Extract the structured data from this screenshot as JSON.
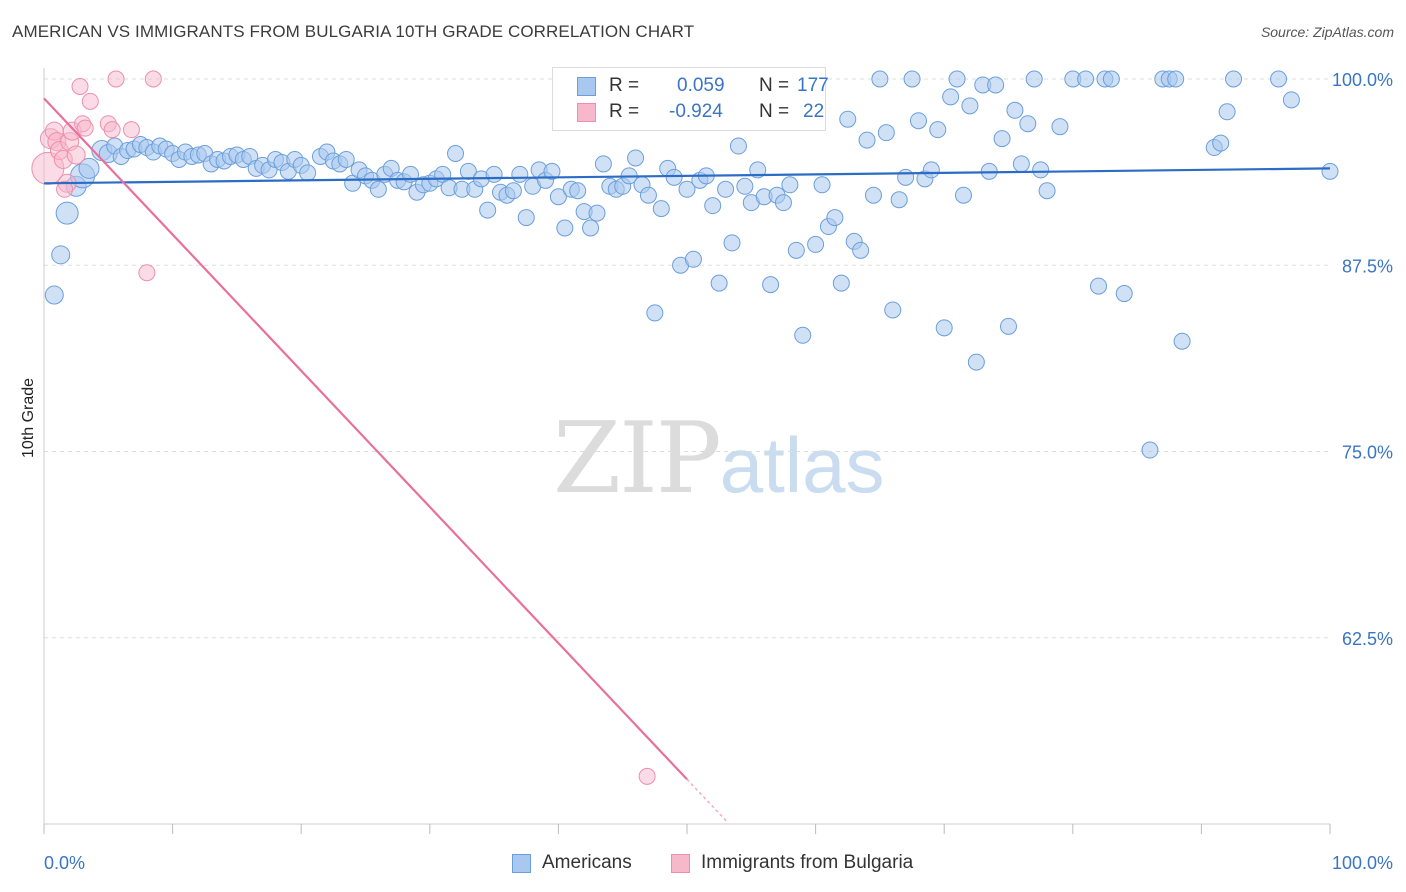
{
  "title": "AMERICAN VS IMMIGRANTS FROM BULGARIA 10TH GRADE CORRELATION CHART",
  "source": "Source: ZipAtlas.com",
  "watermark": {
    "part1": "ZIP",
    "part2": "atlas"
  },
  "legend_top": [
    {
      "r_label": "R =",
      "r_value": "0.059",
      "n_label": "N =",
      "n_value": "177"
    },
    {
      "r_label": "R =",
      "r_value": "-0.924",
      "n_label": "N =",
      "n_value": "22"
    }
  ],
  "colors": {
    "americans_fill": "#a9c8ef",
    "americans_stroke": "#6b9fdc",
    "americans_line": "#2b6cc4",
    "bulgaria_fill": "#f7b8cb",
    "bulgaria_stroke": "#ee8fae",
    "bulgaria_line": "#e8709a",
    "tick_text": "#3a75c4",
    "grid": "#dddddd"
  },
  "chart_data": {
    "type": "scatter",
    "title": "AMERICAN VS IMMIGRANTS FROM BULGARIA 10TH GRADE CORRELATION CHART",
    "xlabel": "",
    "ylabel": "10th Grade",
    "xlim": [
      0,
      100
    ],
    "ylim": [
      50,
      100
    ],
    "x_ticks": [
      0,
      100
    ],
    "x_tick_labels": [
      "0.0%",
      "100.0%"
    ],
    "y_ticks": [
      62.5,
      75.0,
      87.5,
      100.0
    ],
    "y_tick_labels": [
      "62.5%",
      "75.0%",
      "87.5%",
      "100.0%"
    ],
    "grid": true,
    "legend_position": "top-center and bottom",
    "series": [
      {
        "name": "Americans",
        "trend": {
          "x": [
            0,
            100
          ],
          "y": [
            93.0,
            94.0
          ]
        },
        "points": [
          [
            0.8,
            85.5,
            9
          ],
          [
            1.3,
            88.2,
            9
          ],
          [
            1.8,
            91.0,
            11
          ],
          [
            2.5,
            92.8,
            10
          ],
          [
            3.0,
            93.5,
            12
          ],
          [
            3.5,
            94.0,
            10
          ],
          [
            4.5,
            95.2,
            10
          ],
          [
            5.0,
            95.0,
            9
          ],
          [
            5.5,
            95.5,
            8
          ],
          [
            6.0,
            94.8,
            8
          ],
          [
            6.5,
            95.2,
            8
          ],
          [
            7.0,
            95.3,
            8
          ],
          [
            7.5,
            95.6,
            8
          ],
          [
            8.0,
            95.4,
            8
          ],
          [
            8.5,
            95.1,
            8
          ],
          [
            9.0,
            95.5,
            8
          ],
          [
            9.5,
            95.3,
            8
          ],
          [
            10.0,
            95.0,
            8
          ],
          [
            10.5,
            94.6,
            8
          ],
          [
            11.0,
            95.1,
            8
          ],
          [
            11.5,
            94.8,
            8
          ],
          [
            12.0,
            94.9,
            8
          ],
          [
            12.5,
            95.0,
            8
          ],
          [
            13.0,
            94.3,
            8
          ],
          [
            13.5,
            94.6,
            8
          ],
          [
            14.0,
            94.5,
            8
          ],
          [
            14.5,
            94.8,
            8
          ],
          [
            15.0,
            94.9,
            8
          ],
          [
            15.5,
            94.6,
            8
          ],
          [
            16.0,
            94.8,
            8
          ],
          [
            16.5,
            94.0,
            8
          ],
          [
            17.0,
            94.2,
            8
          ],
          [
            17.5,
            93.9,
            8
          ],
          [
            18.0,
            94.6,
            8
          ],
          [
            18.5,
            94.4,
            8
          ],
          [
            19.0,
            93.8,
            8
          ],
          [
            19.5,
            94.6,
            8
          ],
          [
            20.0,
            94.2,
            8
          ],
          [
            20.5,
            93.7,
            8
          ],
          [
            21.5,
            94.8,
            8
          ],
          [
            22.0,
            95.1,
            8
          ],
          [
            22.5,
            94.5,
            8
          ],
          [
            23.0,
            94.3,
            8
          ],
          [
            23.5,
            94.6,
            8
          ],
          [
            24.0,
            93.0,
            8
          ],
          [
            24.5,
            93.9,
            8
          ],
          [
            25.0,
            93.5,
            8
          ],
          [
            25.5,
            93.2,
            8
          ],
          [
            26.0,
            92.6,
            8
          ],
          [
            26.5,
            93.6,
            8
          ],
          [
            27.0,
            94.0,
            8
          ],
          [
            27.5,
            93.2,
            8
          ],
          [
            28.0,
            93.1,
            8
          ],
          [
            28.5,
            93.6,
            8
          ],
          [
            29.0,
            92.4,
            8
          ],
          [
            29.5,
            92.9,
            8
          ],
          [
            30.0,
            93.0,
            8
          ],
          [
            30.5,
            93.3,
            8
          ],
          [
            31.0,
            93.6,
            8
          ],
          [
            31.5,
            92.7,
            8
          ],
          [
            32.0,
            95.0,
            8
          ],
          [
            32.5,
            92.6,
            8
          ],
          [
            33.0,
            93.8,
            8
          ],
          [
            33.5,
            92.6,
            8
          ],
          [
            34.0,
            93.3,
            8
          ],
          [
            34.5,
            91.2,
            8
          ],
          [
            35.0,
            93.6,
            8
          ],
          [
            35.5,
            92.4,
            8
          ],
          [
            36.0,
            92.2,
            8
          ],
          [
            36.5,
            92.5,
            8
          ],
          [
            37.0,
            93.6,
            8
          ],
          [
            37.5,
            90.7,
            8
          ],
          [
            38.0,
            92.8,
            8
          ],
          [
            38.5,
            93.9,
            8
          ],
          [
            39.0,
            93.2,
            8
          ],
          [
            39.5,
            93.8,
            8
          ],
          [
            40.0,
            92.1,
            8
          ],
          [
            40.5,
            90.0,
            8
          ],
          [
            41.0,
            92.6,
            8
          ],
          [
            41.5,
            92.5,
            8
          ],
          [
            42.0,
            91.1,
            8
          ],
          [
            42.5,
            90.0,
            8
          ],
          [
            43.0,
            91.0,
            8
          ],
          [
            43.5,
            94.3,
            8
          ],
          [
            44.0,
            92.8,
            8
          ],
          [
            44.5,
            92.6,
            8
          ],
          [
            45.0,
            92.8,
            8
          ],
          [
            45.5,
            93.5,
            8
          ],
          [
            46.0,
            94.7,
            8
          ],
          [
            46.5,
            92.9,
            8
          ],
          [
            47.0,
            92.2,
            8
          ],
          [
            47.5,
            84.3,
            8
          ],
          [
            48.0,
            91.3,
            8
          ],
          [
            48.5,
            94.0,
            8
          ],
          [
            49.0,
            93.4,
            8
          ],
          [
            49.5,
            87.5,
            8
          ],
          [
            50.0,
            92.6,
            8
          ],
          [
            50.5,
            87.9,
            8
          ],
          [
            51.0,
            93.2,
            8
          ],
          [
            51.5,
            93.5,
            8
          ],
          [
            52.0,
            91.5,
            8
          ],
          [
            52.5,
            86.3,
            8
          ],
          [
            53.0,
            92.6,
            8
          ],
          [
            53.5,
            89.0,
            8
          ],
          [
            54.0,
            95.5,
            8
          ],
          [
            54.5,
            92.8,
            8
          ],
          [
            55.0,
            91.7,
            8
          ],
          [
            55.5,
            93.9,
            8
          ],
          [
            56.0,
            92.1,
            8
          ],
          [
            56.5,
            86.2,
            8
          ],
          [
            57.0,
            92.2,
            8
          ],
          [
            57.5,
            91.7,
            8
          ],
          [
            58.0,
            92.9,
            8
          ],
          [
            58.5,
            88.5,
            8
          ],
          [
            59.0,
            82.8,
            8
          ],
          [
            59.5,
            100.0,
            8
          ],
          [
            60.0,
            88.9,
            8
          ],
          [
            60.5,
            92.9,
            8
          ],
          [
            61.0,
            90.1,
            8
          ],
          [
            61.5,
            90.7,
            8
          ],
          [
            62.0,
            86.3,
            8
          ],
          [
            62.5,
            97.3,
            8
          ],
          [
            63.0,
            89.1,
            8
          ],
          [
            63.5,
            88.5,
            8
          ],
          [
            64.0,
            95.9,
            8
          ],
          [
            64.5,
            92.2,
            8
          ],
          [
            65.0,
            100.0,
            8
          ],
          [
            65.5,
            96.4,
            8
          ],
          [
            66.0,
            84.5,
            8
          ],
          [
            66.5,
            91.9,
            8
          ],
          [
            67.0,
            93.4,
            8
          ],
          [
            67.5,
            100.0,
            8
          ],
          [
            68.0,
            97.2,
            8
          ],
          [
            68.5,
            93.3,
            8
          ],
          [
            69.0,
            93.9,
            8
          ],
          [
            69.5,
            96.6,
            8
          ],
          [
            70.0,
            83.3,
            8
          ],
          [
            70.5,
            98.8,
            8
          ],
          [
            71.0,
            100.0,
            8
          ],
          [
            71.5,
            92.2,
            8
          ],
          [
            72.0,
            98.2,
            8
          ],
          [
            72.5,
            81.0,
            8
          ],
          [
            73.0,
            99.6,
            8
          ],
          [
            73.5,
            93.8,
            8
          ],
          [
            74.0,
            99.6,
            8
          ],
          [
            74.5,
            96.0,
            8
          ],
          [
            75.0,
            83.4,
            8
          ],
          [
            75.5,
            97.9,
            8
          ],
          [
            76.0,
            94.3,
            8
          ],
          [
            76.5,
            97.0,
            8
          ],
          [
            77.0,
            100.0,
            8
          ],
          [
            77.5,
            93.9,
            8
          ],
          [
            78.0,
            92.5,
            8
          ],
          [
            79.0,
            96.8,
            8
          ],
          [
            80.0,
            100.0,
            8
          ],
          [
            81.0,
            100.0,
            8
          ],
          [
            82.0,
            86.1,
            8
          ],
          [
            82.5,
            100.0,
            8
          ],
          [
            83.0,
            100.0,
            8
          ],
          [
            84.0,
            85.6,
            8
          ],
          [
            86.0,
            75.1,
            8
          ],
          [
            87.0,
            100.0,
            8
          ],
          [
            87.5,
            100.0,
            8
          ],
          [
            88.0,
            100.0,
            8
          ],
          [
            88.5,
            82.4,
            8
          ],
          [
            91.0,
            95.4,
            8
          ],
          [
            91.5,
            95.7,
            8
          ],
          [
            92.0,
            97.8,
            8
          ],
          [
            92.5,
            100.0,
            8
          ],
          [
            96.0,
            100.0,
            8
          ],
          [
            97.0,
            98.6,
            8
          ],
          [
            100.0,
            93.8,
            8
          ]
        ]
      },
      {
        "name": "Immigrants from Bulgaria",
        "trend": {
          "x": [
            0,
            50
          ],
          "y": [
            98.7,
            53.0
          ]
        },
        "points": [
          [
            0.3,
            94.0,
            16
          ],
          [
            0.5,
            96.0,
            10
          ],
          [
            0.8,
            96.5,
            9
          ],
          [
            1.0,
            95.8,
            9
          ],
          [
            1.2,
            95.2,
            9
          ],
          [
            1.5,
            94.6,
            9
          ],
          [
            1.8,
            93.0,
            9
          ],
          [
            2.0,
            95.8,
            9
          ],
          [
            2.2,
            96.5,
            9
          ],
          [
            2.5,
            94.9,
            9
          ],
          [
            2.8,
            99.5,
            8
          ],
          [
            3.0,
            97.0,
            8
          ],
          [
            3.2,
            96.7,
            8
          ],
          [
            3.6,
            98.5,
            8
          ],
          [
            5.0,
            97.0,
            8
          ],
          [
            5.3,
            96.6,
            8
          ],
          [
            5.6,
            100.0,
            8
          ],
          [
            6.8,
            96.6,
            8
          ],
          [
            8.0,
            87.0,
            8
          ],
          [
            8.5,
            100.0,
            8
          ],
          [
            46.9,
            53.2,
            8
          ],
          [
            1.6,
            92.6,
            8
          ]
        ]
      }
    ]
  },
  "legend_bottom": [
    "Americans",
    "Immigrants from Bulgaria"
  ]
}
